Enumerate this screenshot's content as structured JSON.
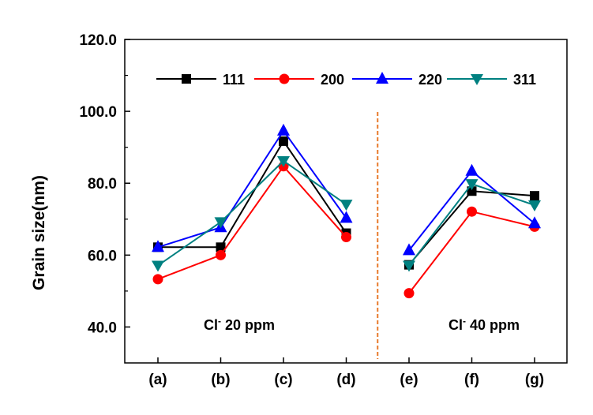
{
  "chart_data": {
    "type": "line",
    "title": "",
    "xlabel": "",
    "ylabel": "Grain size(nm)",
    "categories": [
      "(a)",
      "(b)",
      "(c)",
      "(d)",
      "(e)",
      "(f)",
      "(g)"
    ],
    "yticks": [
      "40.0",
      "60.0",
      "80.0",
      "100.0",
      "120.0"
    ],
    "ylim": [
      30,
      120
    ],
    "grid": false,
    "legend_placement": "top",
    "series": [
      {
        "name": "111",
        "color": "#000000",
        "marker": "square",
        "values": [
          62.2,
          62.2,
          91.7,
          66.1,
          57.3,
          77.8,
          76.5
        ]
      },
      {
        "name": "200",
        "color": "#ff0000",
        "marker": "circle",
        "values": [
          53.3,
          60.0,
          84.7,
          65.0,
          49.4,
          72.1,
          67.9
        ]
      },
      {
        "name": "220",
        "color": "#0000ff",
        "marker": "triangle-up",
        "values": [
          62.2,
          67.7,
          94.6,
          70.3,
          61.3,
          83.4,
          68.8
        ]
      },
      {
        "name": "311",
        "color": "#008080",
        "marker": "triangle-down",
        "values": [
          57.1,
          69.2,
          86.2,
          74.1,
          57.1,
          79.8,
          73.9
        ]
      }
    ],
    "segments": [
      [
        0,
        3
      ],
      [
        4,
        6
      ]
    ],
    "annotations": [
      {
        "text": "Cl",
        "sup": "-",
        "rest": " 20 ppm"
      },
      {
        "text": "Cl",
        "sup": "-",
        "rest": " 40 ppm"
      }
    ],
    "divider": {
      "between": [
        "(d)",
        "(e)"
      ],
      "color": "#e87a2c",
      "style": "dashed"
    }
  }
}
